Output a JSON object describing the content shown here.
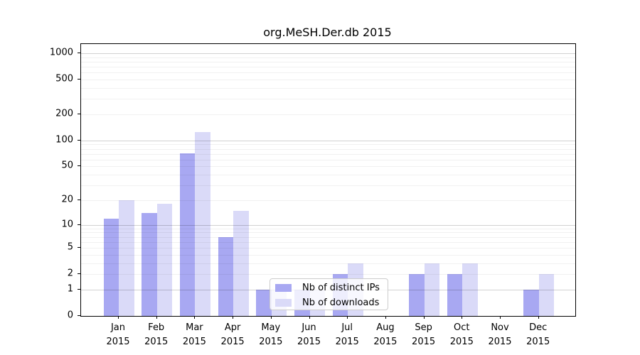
{
  "chart_data": {
    "type": "bar",
    "title": "org.MeSH.Der.db 2015",
    "categories": [
      "Jan",
      "Feb",
      "Mar",
      "Apr",
      "May",
      "Jun",
      "Jul",
      "Aug",
      "Sep",
      "Oct",
      "Nov",
      "Dec"
    ],
    "year_label": "2015",
    "series": [
      {
        "name": "Nb of distinct IPs",
        "color": "#a8a8f2",
        "values": [
          12,
          14,
          71,
          7,
          1,
          1,
          2,
          0,
          2,
          2,
          0,
          1
        ]
      },
      {
        "name": "Nb of downloads",
        "color": "#dadaf8",
        "values": [
          20,
          18,
          125,
          15,
          1,
          1,
          3,
          0,
          3,
          3,
          0,
          2
        ]
      }
    ],
    "y_ticks": [
      0,
      1,
      2,
      5,
      10,
      20,
      50,
      100,
      200,
      500,
      1000
    ],
    "y_major_gridlines": [
      1,
      10,
      100,
      1000
    ],
    "y_minor_gridlines": [
      2,
      3,
      4,
      5,
      6,
      7,
      8,
      9,
      20,
      30,
      40,
      50,
      60,
      70,
      80,
      90,
      200,
      300,
      400,
      500,
      600,
      700,
      800,
      900
    ],
    "y_scale": "log1p",
    "ylim": [
      0,
      1276
    ],
    "grid": true,
    "legend_position": "lower center-left",
    "xlabel": "",
    "ylabel": ""
  }
}
